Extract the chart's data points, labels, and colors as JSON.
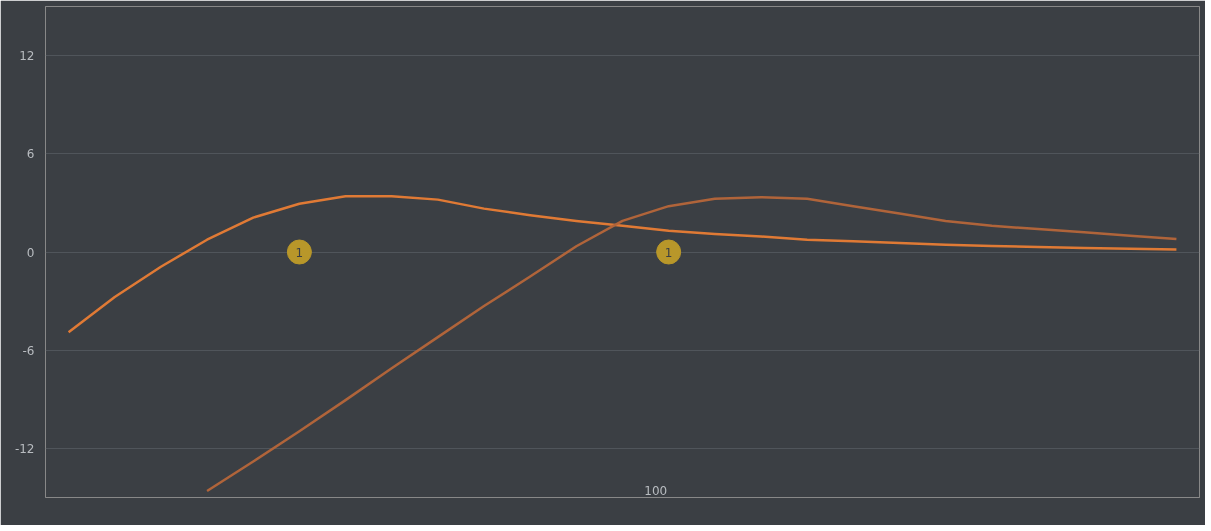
{
  "chart_data": {
    "type": "line",
    "grid": "y",
    "line_style": "solid",
    "marker": "none",
    "tick_labels": "y",
    "ylim": [
      -15,
      15
    ],
    "yticks": [
      -12,
      -6,
      0,
      6,
      12
    ],
    "categories": [
      null,
      null,
      null,
      null,
      null,
      null,
      null,
      null,
      null,
      null,
      null,
      null,
      null,
      null,
      null,
      null,
      null,
      null,
      null,
      null,
      null,
      null,
      null,
      null,
      null
    ],
    "annotations": [
      {
        "text": "1",
        "y": 0
      },
      {
        "text": "1",
        "y": 0
      },
      "100"
    ],
    "series": [
      {
        "color": "#e07a35",
        "values": [
          -4.9,
          -2.75,
          -0.9,
          0.75,
          2.1,
          2.95,
          3.4,
          3.4,
          3.2,
          2.65,
          2.25,
          1.9,
          1.6,
          1.3,
          1.1,
          0.95,
          0.75,
          0.65,
          0.55,
          0.45,
          0.37,
          0.3,
          0.25,
          0.2,
          0.15
        ]
      },
      {
        "color": "#b0643a",
        "values": [
          null,
          null,
          null,
          -14.6,
          -12.8,
          -10.95,
          -9.05,
          -7.1,
          -5.2,
          -3.3,
          -1.5,
          0.35,
          1.9,
          2.8,
          3.25,
          3.35,
          3.25,
          2.8,
          2.35,
          1.9,
          1.6,
          1.4,
          1.2,
          1.0,
          0.8
        ]
      },
      {
        "type": "scatter",
        "marker": "circle",
        "color": "#b8972a",
        "values": [
          null,
          null,
          null,
          null,
          null,
          0,
          null,
          null,
          null,
          null,
          null,
          null,
          null,
          0,
          null,
          null,
          null,
          null,
          null,
          null,
          null,
          null,
          null,
          null,
          null
        ]
      }
    ]
  }
}
